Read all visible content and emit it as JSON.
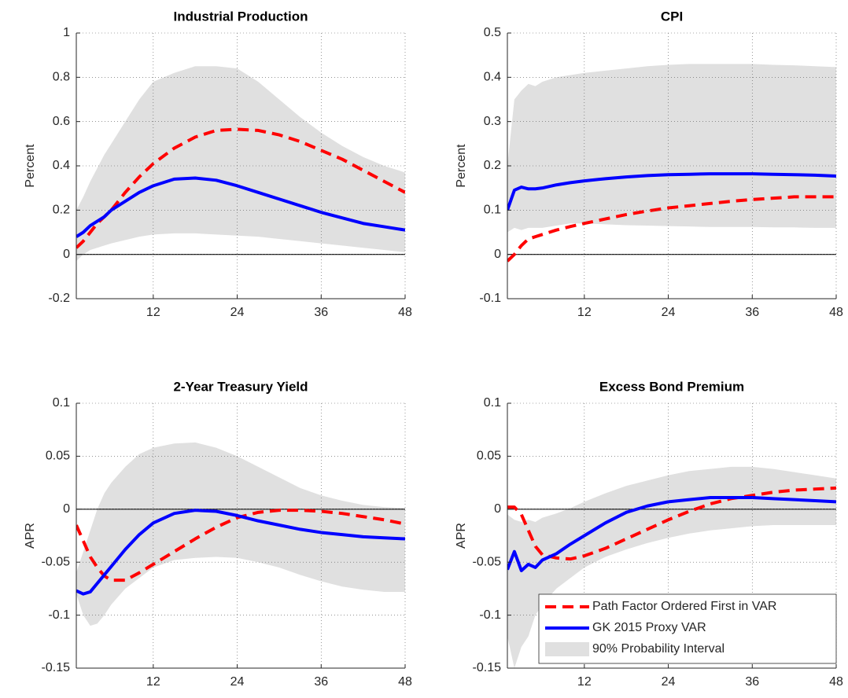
{
  "chart_data": [
    {
      "type": "line",
      "title": "Industrial Production",
      "ylabel": "Percent",
      "x": [
        1,
        2,
        3,
        4,
        5,
        6,
        8,
        10,
        12,
        15,
        18,
        21,
        24,
        27,
        30,
        33,
        36,
        39,
        42,
        45,
        48
      ],
      "xlim": [
        1,
        48
      ],
      "xticks": [
        12,
        24,
        36,
        48
      ],
      "ylim": [
        -0.2,
        1
      ],
      "yticks": [
        -0.2,
        0,
        0.2,
        0.4,
        0.6,
        0.8,
        1
      ],
      "grid": true,
      "band": {
        "color": "#e0e0e0",
        "lower": [
          -0.03,
          0,
          0.02,
          0.03,
          0.04,
          0.05,
          0.065,
          0.08,
          0.09,
          0.095,
          0.095,
          0.09,
          0.085,
          0.08,
          0.07,
          0.06,
          0.05,
          0.04,
          0.03,
          0.02,
          0.01
        ],
        "upper": [
          0.2,
          0.26,
          0.33,
          0.39,
          0.45,
          0.5,
          0.6,
          0.7,
          0.78,
          0.82,
          0.85,
          0.85,
          0.84,
          0.78,
          0.7,
          0.62,
          0.55,
          0.49,
          0.44,
          0.4,
          0.37
        ]
      },
      "series": [
        {
          "color": "#ff0000",
          "dashed": true,
          "values": [
            0.03,
            0.06,
            0.1,
            0.14,
            0.17,
            0.2,
            0.28,
            0.35,
            0.41,
            0.48,
            0.53,
            0.56,
            0.565,
            0.56,
            0.54,
            0.51,
            0.47,
            0.43,
            0.38,
            0.33,
            0.28
          ]
        },
        {
          "color": "#0000ff",
          "dashed": false,
          "values": [
            0.08,
            0.1,
            0.13,
            0.15,
            0.17,
            0.2,
            0.24,
            0.28,
            0.31,
            0.34,
            0.345,
            0.335,
            0.31,
            0.28,
            0.25,
            0.22,
            0.19,
            0.165,
            0.14,
            0.125,
            0.11
          ]
        }
      ]
    },
    {
      "type": "line",
      "title": "CPI",
      "ylabel": "Percent",
      "x": [
        1,
        2,
        3,
        4,
        5,
        6,
        8,
        10,
        12,
        15,
        18,
        21,
        24,
        27,
        30,
        33,
        36,
        39,
        42,
        45,
        48
      ],
      "xlim": [
        1,
        48
      ],
      "xticks": [
        12,
        24,
        36,
        48
      ],
      "ylim": [
        -0.1,
        0.5
      ],
      "yticks": [
        -0.1,
        0,
        0.1,
        0.2,
        0.3,
        0.4,
        0.5
      ],
      "grid": true,
      "band": {
        "color": "#e0e0e0",
        "lower": [
          0.05,
          0.06,
          0.055,
          0.06,
          0.06,
          0.06,
          0.065,
          0.07,
          0.07,
          0.068,
          0.066,
          0.065,
          0.064,
          0.063,
          0.062,
          0.062,
          0.062,
          0.061,
          0.061,
          0.06,
          0.06
        ],
        "upper": [
          0.2,
          0.35,
          0.37,
          0.385,
          0.38,
          0.39,
          0.4,
          0.405,
          0.41,
          0.415,
          0.42,
          0.425,
          0.428,
          0.43,
          0.43,
          0.43,
          0.43,
          0.428,
          0.427,
          0.425,
          0.423
        ]
      },
      "series": [
        {
          "color": "#ff0000",
          "dashed": true,
          "values": [
            -0.015,
            0,
            0.02,
            0.035,
            0.04,
            0.045,
            0.055,
            0.063,
            0.07,
            0.08,
            0.09,
            0.098,
            0.105,
            0.11,
            0.115,
            0.12,
            0.124,
            0.127,
            0.13,
            0.13,
            0.13
          ]
        },
        {
          "color": "#0000ff",
          "dashed": false,
          "values": [
            0.1,
            0.145,
            0.152,
            0.148,
            0.148,
            0.15,
            0.157,
            0.162,
            0.166,
            0.171,
            0.175,
            0.178,
            0.18,
            0.181,
            0.182,
            0.182,
            0.182,
            0.181,
            0.18,
            0.179,
            0.177
          ]
        }
      ]
    },
    {
      "type": "line",
      "title": "2-Year Treasury Yield",
      "ylabel": "APR",
      "x": [
        1,
        2,
        3,
        4,
        5,
        6,
        8,
        10,
        12,
        15,
        18,
        21,
        24,
        27,
        30,
        33,
        36,
        39,
        42,
        45,
        48
      ],
      "xlim": [
        1,
        48
      ],
      "xticks": [
        12,
        24,
        36,
        48
      ],
      "ylim": [
        -0.15,
        0.1
      ],
      "yticks": [
        -0.15,
        -0.1,
        -0.05,
        0,
        0.05,
        0.1
      ],
      "grid": true,
      "band": {
        "color": "#e0e0e0",
        "lower": [
          -0.08,
          -0.1,
          -0.11,
          -0.108,
          -0.1,
          -0.09,
          -0.075,
          -0.065,
          -0.055,
          -0.048,
          -0.046,
          -0.045,
          -0.046,
          -0.05,
          -0.055,
          -0.062,
          -0.068,
          -0.073,
          -0.076,
          -0.078,
          -0.078
        ],
        "upper": [
          -0.06,
          -0.04,
          -0.02,
          0,
          0.015,
          0.025,
          0.04,
          0.052,
          0.058,
          0.062,
          0.063,
          0.058,
          0.05,
          0.04,
          0.03,
          0.02,
          0.013,
          0.008,
          0.004,
          0.002,
          0.001
        ]
      },
      "series": [
        {
          "color": "#ff0000",
          "dashed": true,
          "values": [
            -0.015,
            -0.03,
            -0.045,
            -0.055,
            -0.063,
            -0.067,
            -0.067,
            -0.06,
            -0.052,
            -0.04,
            -0.028,
            -0.017,
            -0.008,
            -0.003,
            -0.001,
            -0.001,
            -0.002,
            -0.004,
            -0.007,
            -0.01,
            -0.014
          ]
        },
        {
          "color": "#0000ff",
          "dashed": false,
          "values": [
            -0.077,
            -0.08,
            -0.078,
            -0.07,
            -0.062,
            -0.054,
            -0.038,
            -0.024,
            -0.013,
            -0.004,
            -0.001,
            -0.002,
            -0.006,
            -0.011,
            -0.015,
            -0.019,
            -0.022,
            -0.024,
            -0.026,
            -0.027,
            -0.028
          ]
        }
      ]
    },
    {
      "type": "line",
      "title": "Excess Bond Premium",
      "ylabel": "APR",
      "x": [
        1,
        2,
        3,
        4,
        5,
        6,
        8,
        10,
        12,
        15,
        18,
        21,
        24,
        27,
        30,
        33,
        36,
        39,
        42,
        45,
        48
      ],
      "xlim": [
        1,
        48
      ],
      "xticks": [
        12,
        24,
        36,
        48
      ],
      "ylim": [
        -0.15,
        0.1
      ],
      "yticks": [
        -0.15,
        -0.1,
        -0.05,
        0,
        0.05,
        0.1
      ],
      "grid": true,
      "legend": "lower right",
      "band": {
        "name": "90% Probability Interval",
        "color": "#e0e0e0",
        "lower": [
          -0.12,
          -0.15,
          -0.13,
          -0.12,
          -0.1,
          -0.09,
          -0.075,
          -0.065,
          -0.055,
          -0.045,
          -0.038,
          -0.032,
          -0.027,
          -0.023,
          -0.02,
          -0.018,
          -0.016,
          -0.015,
          -0.015,
          -0.015,
          -0.015
        ],
        "upper": [
          -0.005,
          -0.01,
          -0.012,
          -0.01,
          -0.012,
          -0.008,
          -0.004,
          0.001,
          0.007,
          0.015,
          0.022,
          0.027,
          0.032,
          0.036,
          0.038,
          0.04,
          0.04,
          0.038,
          0.035,
          0.032,
          0.029
        ]
      },
      "series": [
        {
          "name": "Path Factor Ordered First in VAR",
          "color": "#ff0000",
          "dashed": true,
          "values": [
            0.002,
            0.002,
            -0.005,
            -0.02,
            -0.035,
            -0.043,
            -0.046,
            -0.047,
            -0.044,
            -0.037,
            -0.028,
            -0.019,
            -0.01,
            -0.002,
            0.005,
            0.01,
            0.013,
            0.016,
            0.018,
            0.019,
            0.02
          ]
        },
        {
          "name": "GK 2015 Proxy VAR",
          "color": "#0000ff",
          "dashed": false,
          "values": [
            -0.057,
            -0.04,
            -0.058,
            -0.052,
            -0.055,
            -0.048,
            -0.042,
            -0.033,
            -0.025,
            -0.013,
            -0.003,
            0.003,
            0.007,
            0.009,
            0.011,
            0.011,
            0.011,
            0.01,
            0.009,
            0.008,
            0.007
          ]
        }
      ]
    }
  ]
}
